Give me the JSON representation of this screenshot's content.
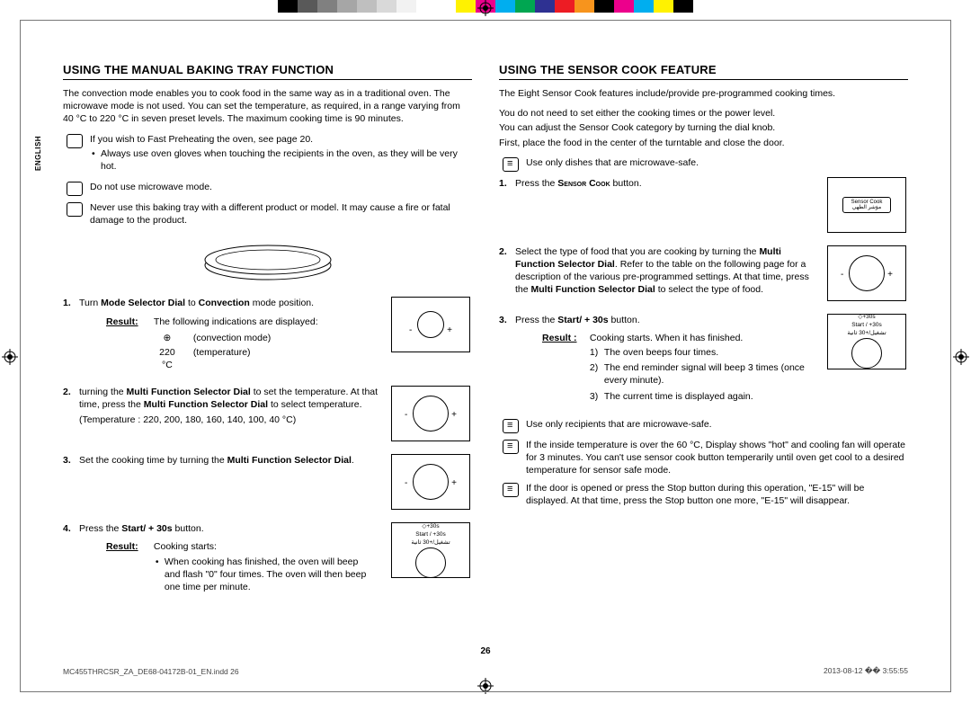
{
  "color_swatches": [
    "#000000",
    "#595959",
    "#808080",
    "#a6a6a6",
    "#bfbfbf",
    "#d9d9d9",
    "#f2f2f2",
    "#ffffff",
    "#ffffff",
    "#fff200",
    "#ec008c",
    "#00aeef",
    "#00a651",
    "#2e3192",
    "#ed1c24",
    "#f7941d",
    "#000000",
    "#ec008c",
    "#00aeef",
    "#fff200",
    "#000000"
  ],
  "language_tab": "ENGLISH",
  "page_number": "26",
  "footer_left": "MC455THRCSR_ZA_DE68-04172B-01_EN.indd   26",
  "footer_right": "2013-08-12   �� 3:55:55",
  "left": {
    "heading": "USING THE MANUAL BAKING TRAY FUNCTION",
    "intro": "The convection mode enables you to cook food in the same way as in a traditional oven. The microwave mode is not used. You can set the temperature, as required, in a range varying from 40 °C to 220 °C in seven preset levels. The maximum cooking time is 90 minutes.",
    "notes": [
      "If you wish to Fast Preheating the oven, see page 20.",
      "Always use oven gloves when touching the recipients in the oven, as they will be very hot.",
      "Do not use microwave mode.",
      "Never use this baking tray with a different product or model. It may cause a fire or fatal damage to the product."
    ],
    "steps": [
      {
        "body_pre": "Turn ",
        "bold1": "Mode Selector Dial",
        "body_mid": " to ",
        "bold2": "Convection",
        "body_post": " mode position.",
        "result_label": "Result:",
        "result_intro": "The following indications are displayed:",
        "indications": [
          {
            "sym": "⊕",
            "desc": "(convection mode)"
          },
          {
            "sym": "220 °C",
            "desc": "(temperature)"
          }
        ]
      },
      {
        "body_pre": "turning the ",
        "bold1": "Multi Function Selector Dial",
        "body_mid": " to set the temperature. At that time, press the ",
        "bold2": "Multi Function Selector Dial",
        "body_post": " to select temperature.",
        "temp_line": "(Temperature : 220, 200, 180, 160, 140, 100, 40 °C)"
      },
      {
        "body_pre": "Set the cooking time by turning the ",
        "bold1": "Multi Function Selector Dial",
        "body_post": "."
      },
      {
        "body_pre": "Press the ",
        "bold1": "Start/ + 30s",
        "body_post": " button.",
        "result_label": "Result:",
        "result_text": "Cooking starts:",
        "result_bullets": [
          "When cooking has finished, the oven will beep and flash \"0\" four times. The oven will then beep one time per minute."
        ],
        "btn_caption_top": "+30s",
        "btn_caption_mid": "Start / +30s",
        "btn_caption_ar": "تشغيل/+30 ثانية"
      }
    ]
  },
  "right": {
    "heading": "USING THE SENSOR COOK FEATURE",
    "intro1": "The Eight Sensor Cook features include/provide pre-programmed cooking times.",
    "intro2": "You do not need to set either the cooking times or the power level.",
    "intro3": "You can adjust the Sensor Cook category by turning the dial knob.",
    "intro4": "First, place the food in the center of the turntable and close the door.",
    "note1": "Use only dishes that are microwave-safe.",
    "sensor_label_en": "Sensor Cook",
    "sensor_label_ar": "مؤشر الطهي",
    "steps": [
      {
        "body_pre": "Press the ",
        "bold1": "Sensor Cook",
        "body_post": " button."
      },
      {
        "body_pre": "Select the type of food that you are cooking by turning the ",
        "bold1": "Multi Function Selector Dial",
        "body_mid": ". Refer to the table on the following page for a description of the various pre-programmed settings. At that time, press the ",
        "bold2": "Multi Function Selector Dial",
        "body_post": " to select the type of food."
      },
      {
        "body_pre": "Press the ",
        "bold1": "Start/ + 30s",
        "body_post": " button.",
        "result_label": "Result :",
        "result_text": "Cooking starts. When it has finished.",
        "sub_list": [
          "The oven beeps four times.",
          "The end reminder signal will beep 3 times (once every minute).",
          "The current time is displayed again."
        ],
        "btn_caption_top": "+30s",
        "btn_caption_mid": "Start / +30s",
        "btn_caption_ar": "تشغيل/+30 ثانية"
      }
    ],
    "end_notes": [
      "Use only recipients that are microwave-safe.",
      "If the inside temperature is over the 60 °C, Display shows \"hot\" and cooling fan will operate for 3 minutes. You can't use sensor cook button temperarily until oven get cool to a desired temperature for sensor safe mode.",
      "If the door is opened or press the Stop button during this operation, \"E-15\" will be displayed. At that time, press the Stop button one more, \"E-15\" will disappear."
    ]
  }
}
